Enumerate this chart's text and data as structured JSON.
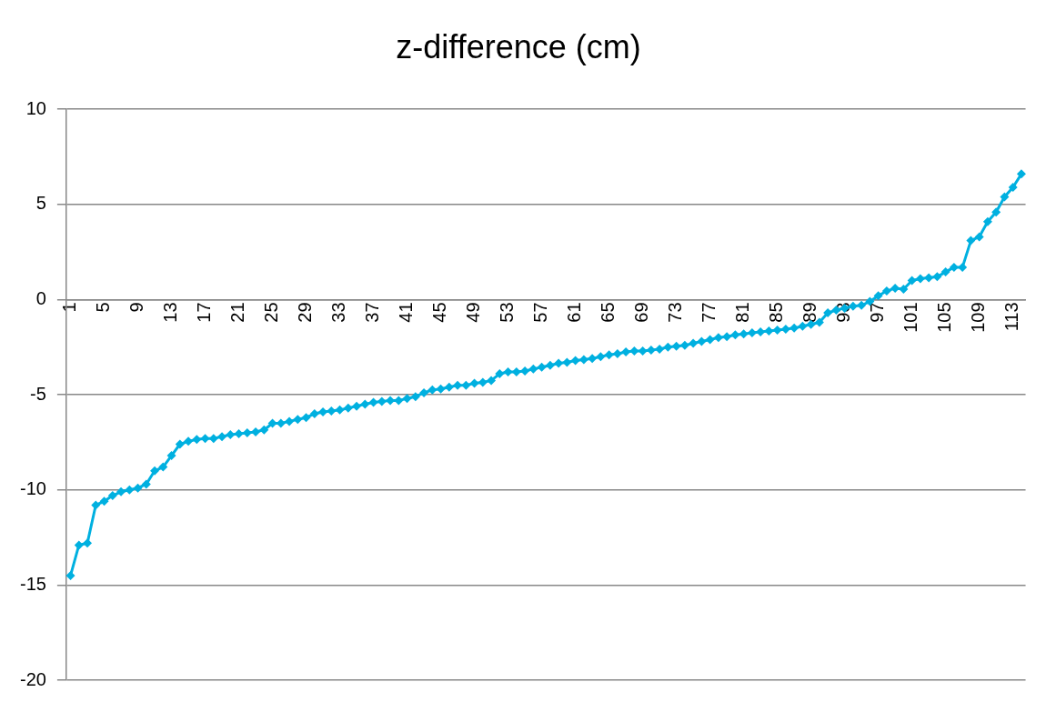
{
  "chart_data": {
    "type": "line",
    "title": "z-difference (cm)",
    "categories": [
      "1",
      null,
      null,
      null,
      "5",
      null,
      null,
      null,
      "9",
      null,
      null,
      null,
      "13",
      null,
      null,
      null,
      "17",
      null,
      null,
      null,
      "21",
      null,
      null,
      null,
      "25",
      null,
      null,
      null,
      "29",
      null,
      null,
      null,
      "33",
      null,
      null,
      null,
      "37",
      null,
      null,
      null,
      "41",
      null,
      null,
      null,
      "45",
      null,
      null,
      null,
      "49",
      null,
      null,
      null,
      "53",
      null,
      null,
      null,
      "57",
      null,
      null,
      null,
      "61",
      null,
      null,
      null,
      "65",
      null,
      null,
      null,
      "69",
      null,
      null,
      null,
      "73",
      null,
      null,
      null,
      "77",
      null,
      null,
      null,
      "81",
      null,
      null,
      null,
      "85",
      null,
      null,
      null,
      "89",
      null,
      null,
      null,
      "93",
      null,
      null,
      null,
      "97",
      null,
      null,
      null,
      "101",
      null,
      null,
      null,
      "105",
      null,
      null,
      null,
      "109",
      null,
      null,
      null,
      "113",
      null
    ],
    "series": [
      {
        "color": "#00b0e0",
        "values": [
          -14.5,
          -12.9,
          -12.8,
          -10.8,
          -10.6,
          -10.3,
          -10.1,
          -10.0,
          -9.9,
          -9.7,
          -9.0,
          -8.8,
          -8.2,
          -7.6,
          -7.45,
          -7.35,
          -7.3,
          -7.3,
          -7.2,
          -7.1,
          -7.05,
          -7.0,
          -6.95,
          -6.85,
          -6.5,
          -6.5,
          -6.4,
          -6.3,
          -6.2,
          -6.0,
          -5.9,
          -5.85,
          -5.8,
          -5.7,
          -5.6,
          -5.5,
          -5.4,
          -5.35,
          -5.3,
          -5.3,
          -5.2,
          -5.1,
          -4.9,
          -4.75,
          -4.7,
          -4.6,
          -4.5,
          -4.5,
          -4.4,
          -4.35,
          -4.25,
          -3.9,
          -3.8,
          -3.8,
          -3.75,
          -3.65,
          -3.55,
          -3.45,
          -3.35,
          -3.3,
          -3.2,
          -3.15,
          -3.1,
          -3.0,
          -2.9,
          -2.85,
          -2.75,
          -2.7,
          -2.7,
          -2.65,
          -2.6,
          -2.5,
          -2.45,
          -2.4,
          -2.3,
          -2.2,
          -2.1,
          -2.0,
          -1.95,
          -1.85,
          -1.8,
          -1.75,
          -1.7,
          -1.65,
          -1.6,
          -1.55,
          -1.5,
          -1.4,
          -1.3,
          -1.2,
          -0.7,
          -0.55,
          -0.45,
          -0.35,
          -0.3,
          -0.1,
          0.2,
          0.45,
          0.6,
          0.55,
          1.0,
          1.1,
          1.15,
          1.2,
          1.45,
          1.7,
          1.7,
          3.1,
          3.3,
          4.1,
          4.6,
          5.4,
          5.9,
          6.6
        ]
      }
    ],
    "ylim": [
      -20,
      10
    ],
    "yticks": [
      -20,
      -15,
      -10,
      -5,
      0,
      5,
      10
    ],
    "grid": "y",
    "legend": false,
    "marker": "diamond",
    "line_style": "solid"
  }
}
